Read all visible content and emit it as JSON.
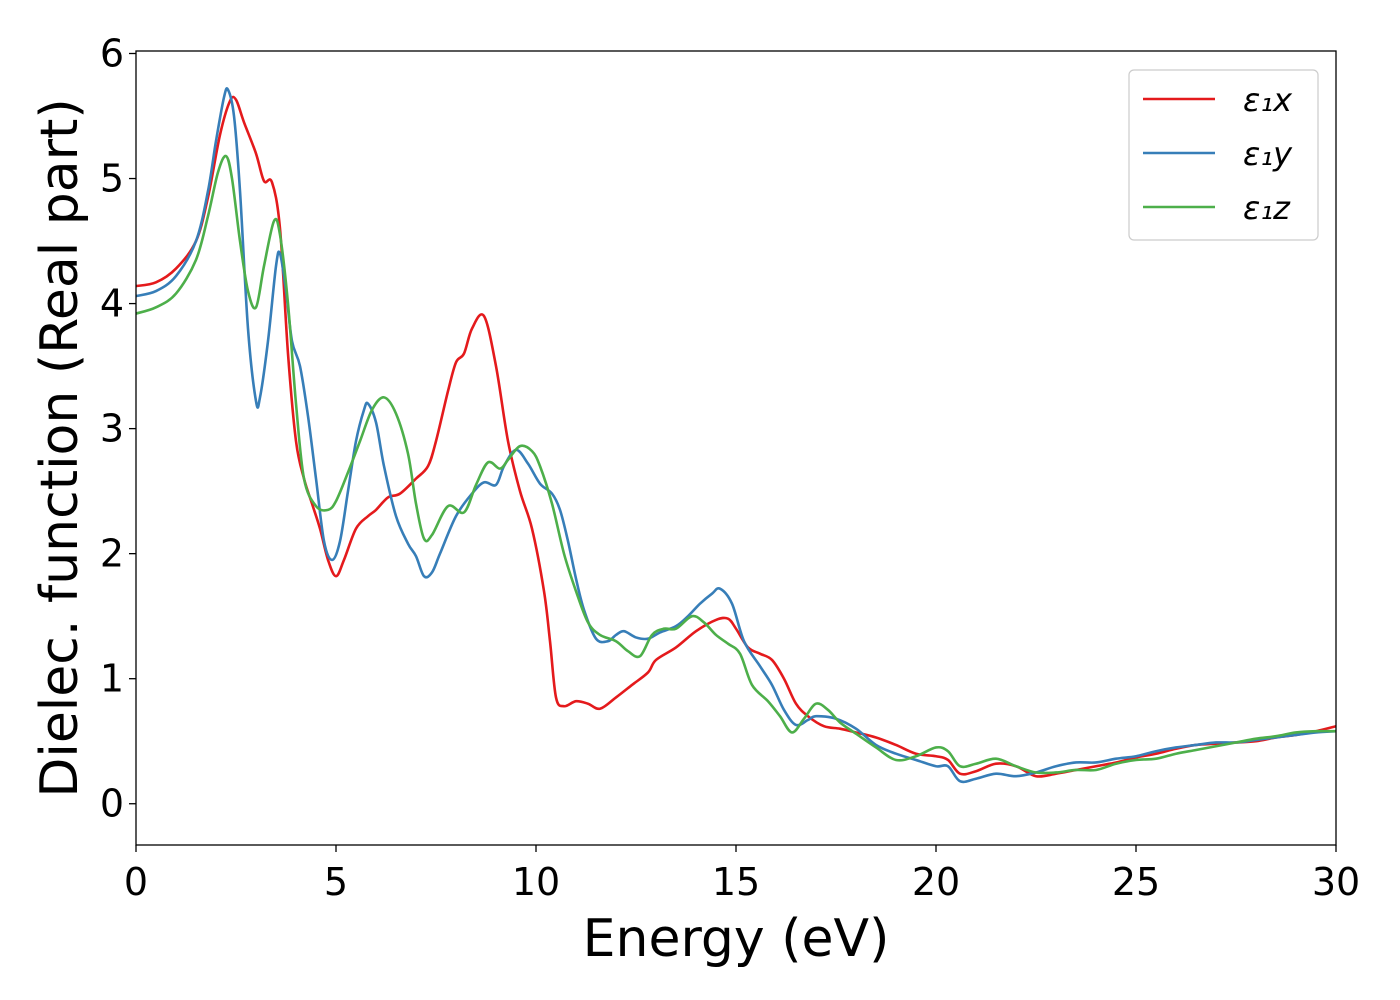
{
  "chart_data": {
    "type": "line",
    "xlabel": "Energy (eV)",
    "ylabel": "Dielec. function (Real part)",
    "xlim": [
      0,
      30
    ],
    "ylim": [
      -0.33,
      6.02
    ],
    "xticks": [
      0,
      5,
      10,
      15,
      20,
      25,
      30
    ],
    "yticks": [
      0,
      1,
      2,
      3,
      4,
      5,
      6
    ],
    "xtick_labels": [
      "0",
      "5",
      "10",
      "15",
      "20",
      "25",
      "30"
    ],
    "ytick_labels": [
      "0",
      "1",
      "2",
      "3",
      "4",
      "5",
      "6"
    ],
    "grid": false,
    "legend": "top-right",
    "series": [
      {
        "name": "ε₁x",
        "color": "#e41a1c",
        "points": [
          [
            0,
            4.14
          ],
          [
            0.5,
            4.17
          ],
          [
            1,
            4.28
          ],
          [
            1.5,
            4.5
          ],
          [
            1.8,
            4.85
          ],
          [
            2.1,
            5.35
          ],
          [
            2.35,
            5.62
          ],
          [
            2.5,
            5.63
          ],
          [
            2.7,
            5.45
          ],
          [
            3,
            5.2
          ],
          [
            3.2,
            4.98
          ],
          [
            3.4,
            4.97
          ],
          [
            3.6,
            4.6
          ],
          [
            3.8,
            3.6
          ],
          [
            4,
            2.9
          ],
          [
            4.2,
            2.6
          ],
          [
            4.4,
            2.4
          ],
          [
            4.6,
            2.2
          ],
          [
            4.8,
            1.95
          ],
          [
            5,
            1.82
          ],
          [
            5.2,
            1.95
          ],
          [
            5.5,
            2.2
          ],
          [
            5.8,
            2.3
          ],
          [
            6,
            2.35
          ],
          [
            6.3,
            2.45
          ],
          [
            6.6,
            2.48
          ],
          [
            7,
            2.6
          ],
          [
            7.3,
            2.7
          ],
          [
            7.5,
            2.9
          ],
          [
            7.8,
            3.3
          ],
          [
            8,
            3.53
          ],
          [
            8.2,
            3.6
          ],
          [
            8.4,
            3.8
          ],
          [
            8.7,
            3.9
          ],
          [
            9,
            3.5
          ],
          [
            9.3,
            2.9
          ],
          [
            9.6,
            2.5
          ],
          [
            9.9,
            2.2
          ],
          [
            10.2,
            1.7
          ],
          [
            10.35,
            1.3
          ],
          [
            10.5,
            0.85
          ],
          [
            10.7,
            0.78
          ],
          [
            11,
            0.82
          ],
          [
            11.3,
            0.8
          ],
          [
            11.6,
            0.76
          ],
          [
            12,
            0.85
          ],
          [
            12.4,
            0.95
          ],
          [
            12.8,
            1.05
          ],
          [
            13,
            1.15
          ],
          [
            13.5,
            1.25
          ],
          [
            14,
            1.38
          ],
          [
            14.5,
            1.47
          ],
          [
            14.8,
            1.48
          ],
          [
            15,
            1.4
          ],
          [
            15.3,
            1.25
          ],
          [
            15.6,
            1.2
          ],
          [
            15.9,
            1.15
          ],
          [
            16.2,
            1.0
          ],
          [
            16.5,
            0.8
          ],
          [
            16.8,
            0.7
          ],
          [
            17.2,
            0.62
          ],
          [
            17.6,
            0.6
          ],
          [
            18,
            0.57
          ],
          [
            18.5,
            0.53
          ],
          [
            19,
            0.47
          ],
          [
            19.5,
            0.4
          ],
          [
            20,
            0.38
          ],
          [
            20.3,
            0.35
          ],
          [
            20.6,
            0.24
          ],
          [
            21,
            0.26
          ],
          [
            21.5,
            0.32
          ],
          [
            22,
            0.3
          ],
          [
            22.5,
            0.22
          ],
          [
            23,
            0.24
          ],
          [
            23.5,
            0.27
          ],
          [
            24,
            0.3
          ],
          [
            24.5,
            0.33
          ],
          [
            25,
            0.37
          ],
          [
            25.5,
            0.4
          ],
          [
            26,
            0.44
          ],
          [
            26.5,
            0.47
          ],
          [
            27,
            0.48
          ],
          [
            27.5,
            0.49
          ],
          [
            28,
            0.5
          ],
          [
            28.5,
            0.53
          ],
          [
            29,
            0.55
          ],
          [
            29.5,
            0.58
          ],
          [
            30,
            0.62
          ]
        ]
      },
      {
        "name": "ε₁y",
        "color": "#377eb8",
        "points": [
          [
            0,
            4.06
          ],
          [
            0.5,
            4.1
          ],
          [
            1,
            4.22
          ],
          [
            1.5,
            4.5
          ],
          [
            1.8,
            4.9
          ],
          [
            2,
            5.3
          ],
          [
            2.2,
            5.65
          ],
          [
            2.3,
            5.71
          ],
          [
            2.45,
            5.5
          ],
          [
            2.6,
            4.9
          ],
          [
            2.8,
            3.8
          ],
          [
            3,
            3.22
          ],
          [
            3.1,
            3.25
          ],
          [
            3.3,
            3.7
          ],
          [
            3.5,
            4.3
          ],
          [
            3.6,
            4.4
          ],
          [
            3.75,
            4.1
          ],
          [
            3.9,
            3.7
          ],
          [
            4.1,
            3.5
          ],
          [
            4.3,
            3.1
          ],
          [
            4.5,
            2.6
          ],
          [
            4.7,
            2.1
          ],
          [
            4.9,
            1.95
          ],
          [
            5.1,
            2.1
          ],
          [
            5.3,
            2.5
          ],
          [
            5.5,
            2.9
          ],
          [
            5.7,
            3.15
          ],
          [
            5.8,
            3.2
          ],
          [
            6,
            3.05
          ],
          [
            6.2,
            2.7
          ],
          [
            6.5,
            2.3
          ],
          [
            6.8,
            2.08
          ],
          [
            7,
            1.98
          ],
          [
            7.2,
            1.82
          ],
          [
            7.4,
            1.85
          ],
          [
            7.6,
            2.0
          ],
          [
            8,
            2.3
          ],
          [
            8.4,
            2.48
          ],
          [
            8.7,
            2.57
          ],
          [
            9,
            2.55
          ],
          [
            9.2,
            2.7
          ],
          [
            9.5,
            2.83
          ],
          [
            9.8,
            2.72
          ],
          [
            10.1,
            2.56
          ],
          [
            10.4,
            2.48
          ],
          [
            10.6,
            2.35
          ],
          [
            10.8,
            2.1
          ],
          [
            11,
            1.8
          ],
          [
            11.2,
            1.55
          ],
          [
            11.5,
            1.32
          ],
          [
            11.8,
            1.3
          ],
          [
            12,
            1.35
          ],
          [
            12.2,
            1.38
          ],
          [
            12.5,
            1.33
          ],
          [
            12.8,
            1.32
          ],
          [
            13.1,
            1.37
          ],
          [
            13.5,
            1.42
          ],
          [
            13.8,
            1.5
          ],
          [
            14.1,
            1.6
          ],
          [
            14.4,
            1.68
          ],
          [
            14.6,
            1.72
          ],
          [
            14.9,
            1.6
          ],
          [
            15.2,
            1.3
          ],
          [
            15.6,
            1.1
          ],
          [
            15.9,
            0.95
          ],
          [
            16.2,
            0.75
          ],
          [
            16.5,
            0.63
          ],
          [
            16.8,
            0.67
          ],
          [
            17,
            0.7
          ],
          [
            17.5,
            0.68
          ],
          [
            18,
            0.6
          ],
          [
            18.5,
            0.47
          ],
          [
            19,
            0.4
          ],
          [
            19.5,
            0.35
          ],
          [
            20,
            0.3
          ],
          [
            20.3,
            0.3
          ],
          [
            20.6,
            0.18
          ],
          [
            21,
            0.2
          ],
          [
            21.5,
            0.24
          ],
          [
            22,
            0.22
          ],
          [
            22.5,
            0.25
          ],
          [
            23,
            0.3
          ],
          [
            23.5,
            0.33
          ],
          [
            24,
            0.33
          ],
          [
            24.5,
            0.36
          ],
          [
            25,
            0.38
          ],
          [
            25.5,
            0.42
          ],
          [
            26,
            0.45
          ],
          [
            26.5,
            0.47
          ],
          [
            27,
            0.49
          ],
          [
            27.5,
            0.49
          ],
          [
            28,
            0.51
          ],
          [
            28.5,
            0.53
          ],
          [
            29,
            0.55
          ],
          [
            29.5,
            0.57
          ],
          [
            30,
            0.58
          ]
        ]
      },
      {
        "name": "ε₁z",
        "color": "#4daf4a",
        "points": [
          [
            0,
            3.92
          ],
          [
            0.5,
            3.97
          ],
          [
            1,
            4.08
          ],
          [
            1.5,
            4.35
          ],
          [
            1.8,
            4.7
          ],
          [
            2.05,
            5.05
          ],
          [
            2.25,
            5.18
          ],
          [
            2.4,
            5.0
          ],
          [
            2.6,
            4.5
          ],
          [
            2.8,
            4.1
          ],
          [
            3,
            3.97
          ],
          [
            3.2,
            4.3
          ],
          [
            3.45,
            4.66
          ],
          [
            3.6,
            4.55
          ],
          [
            3.8,
            4.0
          ],
          [
            4,
            3.2
          ],
          [
            4.2,
            2.6
          ],
          [
            4.5,
            2.38
          ],
          [
            4.8,
            2.35
          ],
          [
            5,
            2.42
          ],
          [
            5.3,
            2.65
          ],
          [
            5.6,
            2.9
          ],
          [
            5.9,
            3.15
          ],
          [
            6.2,
            3.25
          ],
          [
            6.5,
            3.12
          ],
          [
            6.8,
            2.8
          ],
          [
            7,
            2.4
          ],
          [
            7.2,
            2.12
          ],
          [
            7.4,
            2.15
          ],
          [
            7.8,
            2.38
          ],
          [
            8.2,
            2.33
          ],
          [
            8.5,
            2.55
          ],
          [
            8.8,
            2.73
          ],
          [
            9.1,
            2.68
          ],
          [
            9.3,
            2.75
          ],
          [
            9.6,
            2.86
          ],
          [
            9.9,
            2.82
          ],
          [
            10.1,
            2.7
          ],
          [
            10.4,
            2.4
          ],
          [
            10.7,
            2.0
          ],
          [
            11,
            1.7
          ],
          [
            11.3,
            1.45
          ],
          [
            11.6,
            1.35
          ],
          [
            12,
            1.3
          ],
          [
            12.3,
            1.22
          ],
          [
            12.6,
            1.18
          ],
          [
            12.9,
            1.35
          ],
          [
            13.2,
            1.4
          ],
          [
            13.5,
            1.4
          ],
          [
            13.9,
            1.5
          ],
          [
            14.2,
            1.45
          ],
          [
            14.5,
            1.35
          ],
          [
            14.8,
            1.28
          ],
          [
            15.1,
            1.2
          ],
          [
            15.4,
            0.95
          ],
          [
            15.8,
            0.82
          ],
          [
            16.1,
            0.7
          ],
          [
            16.4,
            0.57
          ],
          [
            16.7,
            0.68
          ],
          [
            17,
            0.8
          ],
          [
            17.3,
            0.75
          ],
          [
            17.6,
            0.65
          ],
          [
            18,
            0.56
          ],
          [
            18.5,
            0.45
          ],
          [
            19,
            0.35
          ],
          [
            19.5,
            0.38
          ],
          [
            20,
            0.45
          ],
          [
            20.3,
            0.42
          ],
          [
            20.6,
            0.3
          ],
          [
            21,
            0.32
          ],
          [
            21.5,
            0.36
          ],
          [
            22,
            0.3
          ],
          [
            22.5,
            0.25
          ],
          [
            23,
            0.25
          ],
          [
            23.5,
            0.27
          ],
          [
            24,
            0.27
          ],
          [
            24.5,
            0.32
          ],
          [
            25,
            0.35
          ],
          [
            25.5,
            0.36
          ],
          [
            26,
            0.4
          ],
          [
            26.5,
            0.43
          ],
          [
            27,
            0.46
          ],
          [
            27.5,
            0.49
          ],
          [
            28,
            0.52
          ],
          [
            28.5,
            0.54
          ],
          [
            29,
            0.57
          ],
          [
            29.5,
            0.58
          ],
          [
            30,
            0.58
          ]
        ]
      }
    ]
  }
}
